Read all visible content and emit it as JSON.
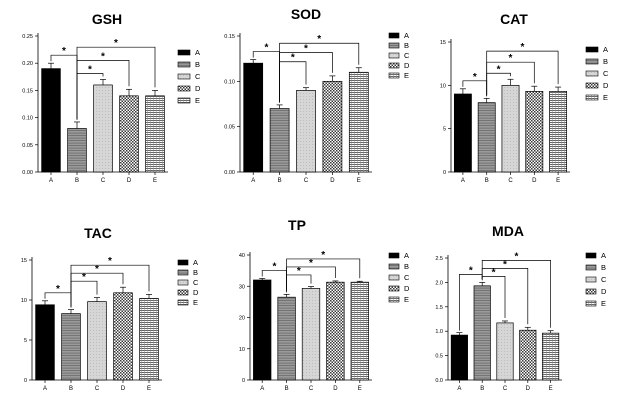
{
  "chart_data": [
    {
      "type": "bar",
      "title": "GSH",
      "categories": [
        "A",
        "B",
        "C",
        "D",
        "E"
      ],
      "values": [
        0.19,
        0.08,
        0.16,
        0.14,
        0.14
      ],
      "errors": [
        0.01,
        0.012,
        0.01,
        0.012,
        0.01
      ],
      "ylim": [
        0,
        0.25
      ],
      "yticks": [
        "0.00",
        "0.05",
        "0.10",
        "0.15",
        "0.20",
        "0.25"
      ],
      "ytick_values": [
        0,
        0.05,
        0.1,
        0.15,
        0.2,
        0.25
      ],
      "legend": [
        "A",
        "B",
        "C",
        "D",
        "E"
      ],
      "significance": [
        {
          "from": "A",
          "to": "B",
          "label": "*"
        },
        {
          "from": "B",
          "to": "C",
          "label": "*"
        },
        {
          "from": "B",
          "to": "D",
          "label": "*"
        },
        {
          "from": "B",
          "to": "E",
          "label": "*"
        }
      ]
    },
    {
      "type": "bar",
      "title": "SOD",
      "categories": [
        "A",
        "B",
        "C",
        "D",
        "E"
      ],
      "values": [
        0.12,
        0.07,
        0.09,
        0.1,
        0.11
      ],
      "errors": [
        0.004,
        0.004,
        0.003,
        0.006,
        0.005
      ],
      "ylim": [
        0,
        0.15
      ],
      "yticks": [
        "0.00",
        "0.05",
        "0.10",
        "0.15"
      ],
      "ytick_values": [
        0,
        0.05,
        0.1,
        0.15
      ],
      "legend": [
        "A",
        "B",
        "C",
        "D",
        "E"
      ],
      "significance": [
        {
          "from": "A",
          "to": "B",
          "label": "*"
        },
        {
          "from": "B",
          "to": "C",
          "label": "*"
        },
        {
          "from": "B",
          "to": "D",
          "label": "*"
        },
        {
          "from": "B",
          "to": "E",
          "label": "*"
        }
      ]
    },
    {
      "type": "bar",
      "title": "CAT",
      "categories": [
        "A",
        "B",
        "C",
        "D",
        "E"
      ],
      "values": [
        9.0,
        8.0,
        10.0,
        9.3,
        9.3
      ],
      "errors": [
        0.6,
        0.5,
        0.7,
        0.6,
        0.5
      ],
      "ylim": [
        0,
        15
      ],
      "yticks": [
        "0",
        "5",
        "10",
        "15"
      ],
      "ytick_values": [
        0,
        5,
        10,
        15
      ],
      "legend": [
        "A",
        "B",
        "C",
        "D",
        "E"
      ],
      "significance": [
        {
          "from": "A",
          "to": "B",
          "label": "*"
        },
        {
          "from": "B",
          "to": "C",
          "label": "*"
        },
        {
          "from": "B",
          "to": "D",
          "label": "*"
        },
        {
          "from": "B",
          "to": "E",
          "label": "*"
        }
      ]
    },
    {
      "type": "bar",
      "title": "TAC",
      "categories": [
        "A",
        "B",
        "C",
        "D",
        "E"
      ],
      "values": [
        9.4,
        8.3,
        9.8,
        10.9,
        10.2
      ],
      "errors": [
        0.5,
        0.5,
        0.5,
        0.7,
        0.5
      ],
      "ylim": [
        0,
        15
      ],
      "yticks": [
        "0",
        "5",
        "10",
        "15"
      ],
      "ytick_values": [
        0,
        5,
        10,
        15
      ],
      "legend": [
        "A",
        "B",
        "C",
        "D",
        "E"
      ],
      "significance": [
        {
          "from": "A",
          "to": "B",
          "label": "*"
        },
        {
          "from": "B",
          "to": "C",
          "label": "*"
        },
        {
          "from": "B",
          "to": "D",
          "label": "*"
        },
        {
          "from": "B",
          "to": "E",
          "label": "*"
        }
      ]
    },
    {
      "type": "bar",
      "title": "TP",
      "categories": [
        "A",
        "B",
        "C",
        "D",
        "E"
      ],
      "values": [
        32.0,
        26.5,
        29.3,
        31.3,
        31.3
      ],
      "errors": [
        0.5,
        0.9,
        0.6,
        0.4,
        0.3
      ],
      "ylim": [
        0,
        40
      ],
      "yticks": [
        "0",
        "10",
        "20",
        "30",
        "40"
      ],
      "ytick_values": [
        0,
        10,
        20,
        30,
        40
      ],
      "legend": [
        "A",
        "B",
        "C",
        "D",
        "E"
      ],
      "significance": [
        {
          "from": "A",
          "to": "B",
          "label": "*"
        },
        {
          "from": "B",
          "to": "C",
          "label": "*"
        },
        {
          "from": "B",
          "to": "D",
          "label": "*"
        },
        {
          "from": "B",
          "to": "E",
          "label": "*"
        }
      ]
    },
    {
      "type": "bar",
      "title": "MDA",
      "categories": [
        "A",
        "B",
        "C",
        "D",
        "E"
      ],
      "values": [
        0.92,
        1.93,
        1.17,
        1.02,
        0.96
      ],
      "errors": [
        0.05,
        0.07,
        0.04,
        0.06,
        0.05
      ],
      "ylim": [
        0,
        2.5
      ],
      "yticks": [
        "0.0",
        "0.5",
        "1.0",
        "1.5",
        "2.0",
        "2.5"
      ],
      "ytick_values": [
        0,
        0.5,
        1.0,
        1.5,
        2.0,
        2.5
      ],
      "legend": [
        "A",
        "B",
        "C",
        "D",
        "E"
      ],
      "significance": [
        {
          "from": "A",
          "to": "B",
          "label": "*"
        },
        {
          "from": "B",
          "to": "C",
          "label": "*"
        },
        {
          "from": "B",
          "to": "D",
          "label": "*"
        },
        {
          "from": "B",
          "to": "E",
          "label": "*"
        }
      ]
    }
  ]
}
